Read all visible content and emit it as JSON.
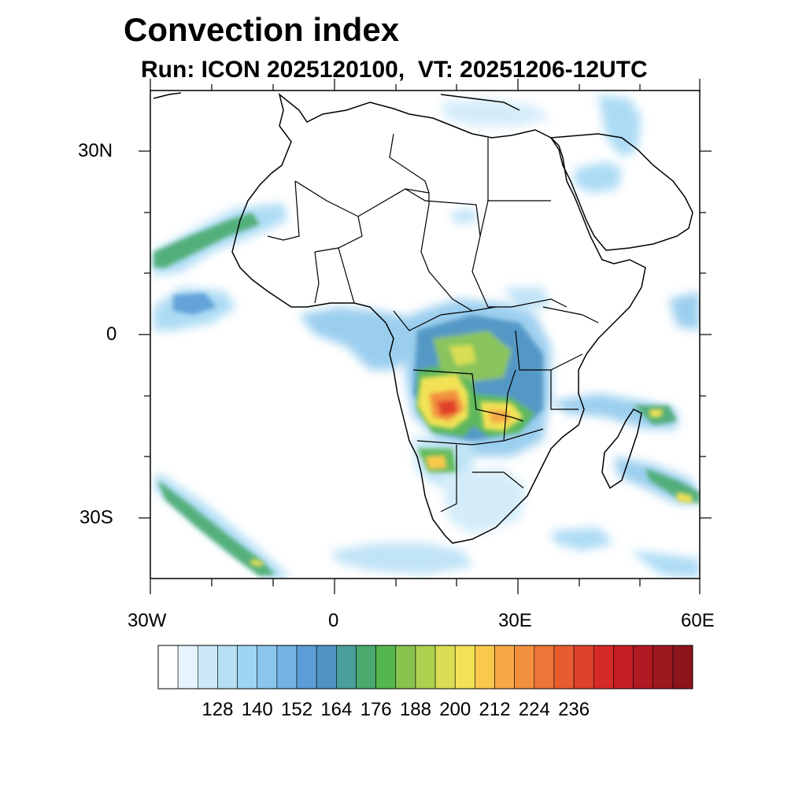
{
  "header": {
    "title": "Convection index",
    "subtitle": "Run: ICON 2025120100,  VT: 20251206-12UTC"
  },
  "axes": {
    "lat_labels": [
      "30N",
      "0",
      "30S"
    ],
    "lon_labels": [
      "30W",
      "0",
      "30E",
      "60E"
    ]
  },
  "chart_data": {
    "type": "heatmap",
    "title": "Convection index",
    "lon_range": [
      -30,
      60
    ],
    "lat_range": [
      -40,
      40
    ],
    "colorbar": {
      "tick_labels": [
        "128",
        "140",
        "152",
        "164",
        "176",
        "188",
        "200",
        "212",
        "224",
        "236"
      ],
      "colors": [
        "#ffffff",
        "#e6f5fd",
        "#cde9f8",
        "#b6dff5",
        "#9fd5f3",
        "#8ac6ec",
        "#73b3e3",
        "#5b9dd6",
        "#4e93c2",
        "#4a9f9a",
        "#4aaa6e",
        "#56b64e",
        "#88c34e",
        "#aed04f",
        "#d9de55",
        "#f2e255",
        "#f9c94e",
        "#f7a946",
        "#f3903f",
        "#ee7437",
        "#e85d30",
        "#e0412b",
        "#d62a28",
        "#c51f26",
        "#b01a22",
        "#9e1820",
        "#8b151b"
      ]
    }
  }
}
